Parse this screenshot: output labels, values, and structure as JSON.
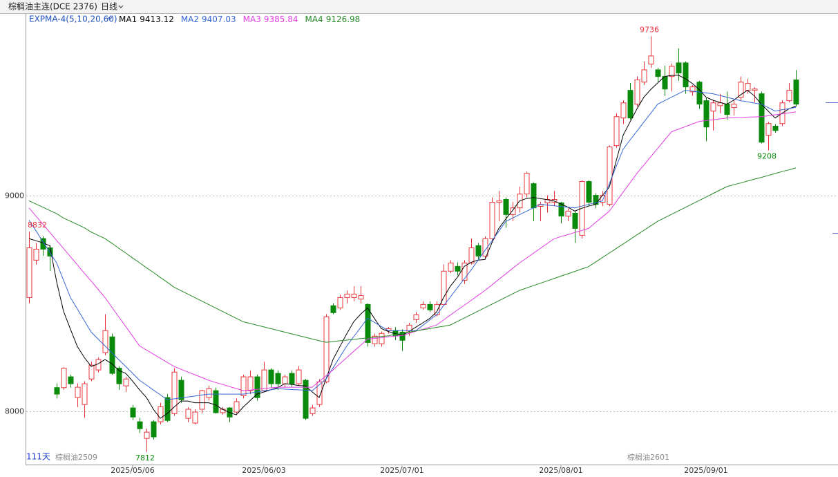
{
  "chart_data": {
    "type": "candlestick",
    "title": "棕榈油主连(DCE 2376)",
    "period": "日线",
    "indicator": "EXPMA-4(5,10,20,60)",
    "day_count": "111天",
    "contracts": [
      "棕榈油2509",
      "棕榈油2601"
    ],
    "categories": [
      null,
      null,
      null,
      null,
      null,
      null,
      null,
      null,
      null,
      null,
      null,
      null,
      null,
      null,
      null,
      "2025/05/06",
      null,
      null,
      null,
      null,
      null,
      null,
      null,
      null,
      null,
      null,
      null,
      null,
      null,
      null,
      null,
      null,
      null,
      null,
      "2025/06/03",
      null,
      null,
      null,
      null,
      null,
      null,
      null,
      null,
      null,
      null,
      null,
      null,
      null,
      null,
      null,
      null,
      null,
      null,
      null,
      "2025/07/01",
      null,
      null,
      null,
      null,
      null,
      null,
      null,
      null,
      null,
      null,
      null,
      null,
      null,
      null,
      null,
      null,
      null,
      null,
      null,
      null,
      null,
      null,
      "2025/08/01",
      null,
      null,
      null,
      null,
      null,
      null,
      null,
      null,
      null,
      null,
      null,
      null,
      null,
      null,
      null,
      null,
      null,
      null,
      null,
      null,
      "2025/09/01",
      null,
      null,
      null,
      null,
      null,
      null,
      null,
      null,
      null,
      null,
      null,
      null,
      null
    ],
    "open": [
      8527,
      8700,
      8800,
      8757,
      8110,
      8110,
      8160,
      8064,
      8032,
      8150,
      8192,
      8272,
      8345,
      8200,
      8118,
      8016,
      7952,
      7875,
      7952,
      7952,
      8064,
      7990,
      8144,
      7968,
      7946,
      8010,
      8064,
      8096,
      7994,
      8016,
      7997,
      8073,
      8096,
      8160,
      8096,
      8192,
      8176,
      8128,
      8176,
      8128,
      8144,
      7990,
      8032,
      8137,
      8489,
      8479,
      8527,
      8527,
      8520,
      8495,
      8313,
      8313,
      8374,
      8374,
      8367,
      8367,
      8425,
      8479,
      8495,
      8447,
      8495,
      8649,
      8671,
      8607,
      8687,
      8767,
      8719,
      8799,
      8968,
      8981,
      8911,
      8942,
      9006,
      9054,
      8949,
      8965,
      8968,
      8965,
      8904,
      8917,
      8815,
      9064,
      9000,
      8968,
      8958,
      9230,
      9358,
      9486,
      9422,
      9524,
      9607,
      9581,
      9550,
      9550,
      9613,
      9613,
      9479,
      9524,
      9438,
      9390,
      9415,
      9422,
      9406,
      9454,
      9486,
      9486,
      9470,
      9278,
      9320,
      9332,
      9438,
      9534
    ],
    "high": [
      8832,
      8780,
      8810,
      8770,
      8130,
      8205,
      8170,
      8130,
      8140,
      8230,
      8250,
      8450,
      8360,
      8210,
      8160,
      8030,
      7970,
      7920,
      7960,
      8040,
      8080,
      8200,
      8160,
      8020,
      8010,
      8100,
      8120,
      8110,
      8020,
      8020,
      8060,
      8170,
      8190,
      8170,
      8230,
      8200,
      8190,
      8170,
      8190,
      8210,
      8150,
      8030,
      8150,
      8450,
      8500,
      8540,
      8560,
      8580,
      8580,
      8500,
      8360,
      8370,
      8390,
      8390,
      8380,
      8410,
      8460,
      8510,
      8510,
      8510,
      8680,
      8700,
      8690,
      8700,
      8800,
      8780,
      8810,
      8990,
      9020,
      8990,
      8970,
      9040,
      9110,
      9060,
      8970,
      9000,
      9020,
      8970,
      8940,
      8930,
      9070,
      9070,
      9010,
      9020,
      9230,
      9380,
      9440,
      9520,
      9550,
      9620,
      9736,
      9590,
      9600,
      9610,
      9680,
      9620,
      9510,
      9530,
      9450,
      9440,
      9470,
      9480,
      9440,
      9550,
      9540,
      9500,
      9480,
      9340,
      9330,
      9440,
      9520,
      9580
    ],
    "low": [
      8500,
      8680,
      8720,
      8650,
      8060,
      8100,
      8110,
      8020,
      7970,
      8140,
      8180,
      8260,
      8170,
      8100,
      8090,
      7960,
      7900,
      7812,
      7870,
      7940,
      7950,
      7980,
      8040,
      7950,
      7940,
      7990,
      8050,
      7990,
      7985,
      7950,
      7990,
      8060,
      8080,
      8050,
      8090,
      8110,
      8100,
      8110,
      8110,
      8120,
      7960,
      7980,
      8020,
      8130,
      8450,
      8470,
      8500,
      8510,
      8500,
      8300,
      8300,
      8300,
      8360,
      8330,
      8280,
      8350,
      8410,
      8470,
      8460,
      8440,
      8490,
      8640,
      8630,
      8590,
      8680,
      8700,
      8710,
      8790,
      8880,
      8850,
      8880,
      8920,
      8990,
      8880,
      8880,
      8920,
      8950,
      8870,
      8880,
      8780,
      8800,
      8950,
      8940,
      8950,
      8950,
      9220,
      9330,
      9350,
      9410,
      9510,
      9590,
      9520,
      9460,
      9480,
      9530,
      9470,
      9460,
      9400,
      9250,
      9300,
      9380,
      9350,
      9370,
      9440,
      9470,
      9430,
      9240,
      9208,
      9290,
      9320,
      9430,
      9410
    ],
    "close": [
      8757,
      8751,
      8751,
      8719,
      8080,
      8200,
      8128,
      8112,
      8128,
      8214,
      8240,
      8374,
      8176,
      8128,
      8150,
      7974,
      7920,
      7904,
      7882,
      8022,
      7958,
      8182,
      8054,
      8010,
      7997,
      8096,
      8105,
      7994,
      8010,
      7974,
      8045,
      8160,
      8160,
      8064,
      8192,
      8128,
      8128,
      8160,
      8128,
      8192,
      7968,
      8016,
      8137,
      8438,
      8457,
      8527,
      8543,
      8543,
      8536,
      8319,
      8348,
      8361,
      8383,
      8351,
      8329,
      8399,
      8447,
      8495,
      8470,
      8495,
      8649,
      8687,
      8649,
      8687,
      8757,
      8719,
      8799,
      8968,
      8974,
      8911,
      8942,
      9006,
      9102,
      8942,
      8958,
      8981,
      8981,
      8904,
      8927,
      8847,
      9064,
      8968,
      8958,
      9000,
      9224,
      9364,
      9428,
      9358,
      9534,
      9581,
      9645,
      9550,
      9492,
      9597,
      9566,
      9502,
      9502,
      9422,
      9316,
      9428,
      9428,
      9374,
      9422,
      9524,
      9518,
      9492,
      9246,
      9332,
      9300,
      9428,
      9486,
      9422
    ],
    "up_color": "#e8333a",
    "down_color": "#0a8a0a",
    "series": [
      {
        "name": "MA1",
        "last_value": 9413.12,
        "color": "#000000",
        "values": [
          8800,
          8790,
          8780,
          8767,
          8600,
          8463,
          8380,
          8300,
          8250,
          8208,
          8220,
          8240,
          8220,
          8190,
          8176,
          8140,
          8100,
          8064,
          8010,
          7968,
          7990,
          8020,
          8048,
          8048,
          8040,
          8040,
          8040,
          8030,
          8010,
          7995,
          7984,
          8020,
          8050,
          8080,
          8090,
          8100,
          8110,
          8128,
          8125,
          8120,
          8118,
          8090,
          8064,
          8150,
          8240,
          8300,
          8360,
          8415,
          8450,
          8479,
          8430,
          8383,
          8370,
          8360,
          8351,
          8370,
          8390,
          8410,
          8430,
          8460,
          8527,
          8580,
          8620,
          8671,
          8690,
          8700,
          8703,
          8780,
          8847,
          8890,
          8930,
          8974,
          8985,
          8990,
          8985,
          8980,
          8974,
          8960,
          8945,
          8927,
          8940,
          8950,
          8958,
          9000,
          9038,
          9160,
          9278,
          9340,
          9400,
          9454,
          9490,
          9520,
          9550,
          9555,
          9556,
          9540,
          9518,
          9490,
          9454,
          9440,
          9430,
          9422,
          9440,
          9465,
          9486,
          9460,
          9422,
          9390,
          9358,
          9380,
          9400,
          9413
        ]
      },
      {
        "name": "MA2",
        "last_value": 9407.03,
        "color": "#3566d6",
        "values": [
          8885,
          8836,
          8786,
          8737,
          8687,
          8607,
          8527,
          8474,
          8420,
          8367,
          8335,
          8303,
          8271,
          8239,
          8208,
          8176,
          8144,
          8122,
          8099,
          8077,
          8054,
          8058,
          8063,
          8067,
          8071,
          8076,
          8080,
          8080,
          8080,
          8080,
          8080,
          8080,
          8085,
          8090,
          8095,
          8100,
          8105,
          8103,
          8101,
          8100,
          8098,
          8096,
          8123,
          8150,
          8201,
          8252,
          8303,
          8346,
          8388,
          8431,
          8412,
          8393,
          8374,
          8374,
          8374,
          8374,
          8374,
          8398,
          8423,
          8447,
          8489,
          8530,
          8572,
          8613,
          8655,
          8700,
          8745,
          8789,
          8834,
          8879,
          8895,
          8911,
          8926,
          8942,
          8958,
          8955,
          8952,
          8948,
          8945,
          8942,
          8950,
          8958,
          8966,
          8974,
          9054,
          9134,
          9214,
          9256,
          9297,
          9339,
          9380,
          9422,
          9438,
          9454,
          9470,
          9486,
          9482,
          9478,
          9474,
          9470,
          9462,
          9454,
          9446,
          9438,
          9433,
          9427,
          9422,
          9406,
          9390,
          9396,
          9401,
          9407
        ]
      },
      {
        "name": "MA3",
        "last_value": 9385.84,
        "color": "#e33de3",
        "values": [
          8942,
          8904,
          8867,
          8829,
          8791,
          8754,
          8716,
          8678,
          8640,
          8603,
          8565,
          8527,
          8482,
          8437,
          8393,
          8348,
          8303,
          8284,
          8265,
          8246,
          8227,
          8208,
          8195,
          8182,
          8170,
          8157,
          8144,
          8134,
          8125,
          8115,
          8106,
          8096,
          8099,
          8102,
          8106,
          8109,
          8112,
          8112,
          8112,
          8112,
          8112,
          8112,
          8139,
          8165,
          8192,
          8221,
          8249,
          8278,
          8306,
          8335,
          8338,
          8341,
          8345,
          8348,
          8351,
          8361,
          8371,
          8380,
          8390,
          8400,
          8423,
          8446,
          8469,
          8491,
          8514,
          8537,
          8560,
          8585,
          8611,
          8636,
          8662,
          8687,
          8709,
          8732,
          8754,
          8777,
          8799,
          8809,
          8818,
          8828,
          8837,
          8847,
          8874,
          8900,
          8927,
          8971,
          9015,
          9058,
          9102,
          9140,
          9179,
          9217,
          9256,
          9294,
          9306,
          9318,
          9330,
          9342,
          9346,
          9350,
          9354,
          9358,
          9359,
          9360,
          9362,
          9363,
          9364,
          9368,
          9373,
          9377,
          9382,
          9386
        ]
      },
      {
        "name": "MA4",
        "last_value": 9126.98,
        "color": "#248a24",
        "values": [
          8975,
          8960,
          8945,
          8930,
          8915,
          8895,
          8880,
          8865,
          8850,
          8830,
          8815,
          8800,
          8778,
          8755,
          8733,
          8710,
          8688,
          8665,
          8643,
          8620,
          8598,
          8575,
          8559,
          8543,
          8527,
          8511,
          8495,
          8479,
          8463,
          8447,
          8431,
          8415,
          8407,
          8399,
          8391,
          8383,
          8375,
          8367,
          8359,
          8351,
          8343,
          8335,
          8327,
          8320,
          8323,
          8327,
          8330,
          8333,
          8337,
          8340,
          8343,
          8347,
          8350,
          8356,
          8361,
          8367,
          8372,
          8378,
          8383,
          8389,
          8394,
          8400,
          8416,
          8432,
          8448,
          8464,
          8480,
          8496,
          8512,
          8528,
          8544,
          8560,
          8571,
          8582,
          8593,
          8604,
          8615,
          8626,
          8637,
          8648,
          8659,
          8670,
          8691,
          8712,
          8733,
          8754,
          8775,
          8796,
          8817,
          8838,
          8859,
          8880,
          8896,
          8912,
          8928,
          8944,
          8960,
          8976,
          8992,
          9008,
          9024,
          9040,
          9049,
          9057,
          9066,
          9075,
          9083,
          9092,
          9101,
          9110,
          9118,
          9127
        ]
      }
    ],
    "ylim": [
      7754,
      9840
    ],
    "yticks": [
      8000,
      9000
    ],
    "grid": true
  }
}
